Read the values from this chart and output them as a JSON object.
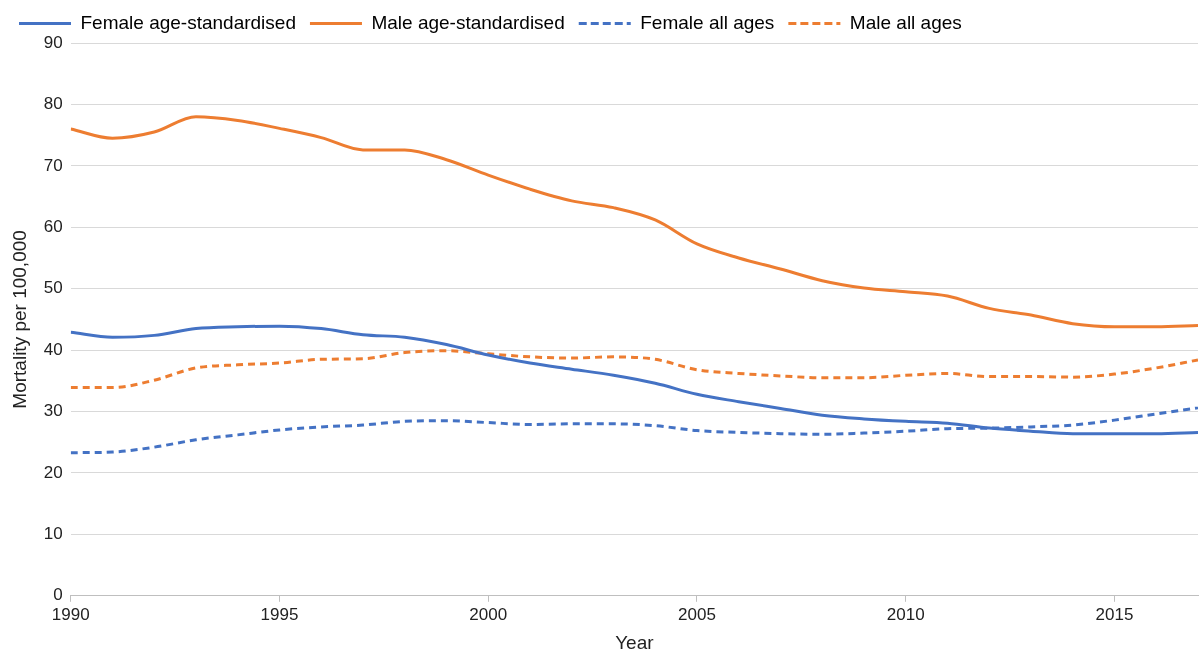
{
  "chart_data": {
    "type": "line",
    "xlabel": "Year",
    "ylabel": "Mortality per 100,000",
    "x": [
      1990,
      1991,
      1992,
      1993,
      1994,
      1995,
      1996,
      1997,
      1998,
      1999,
      2000,
      2001,
      2002,
      2003,
      2004,
      2005,
      2006,
      2007,
      2008,
      2009,
      2010,
      2011,
      2012,
      2013,
      2014,
      2015,
      2016,
      2017
    ],
    "xlim": [
      1990,
      2017
    ],
    "xticks": [
      1990,
      1995,
      2000,
      2005,
      2010,
      2015
    ],
    "ylim": [
      0,
      90
    ],
    "yticks": [
      0,
      10,
      20,
      30,
      40,
      50,
      60,
      70,
      80,
      90
    ],
    "grid": "y",
    "legend": "top",
    "marker": "none",
    "series": [
      {
        "name": "Female age-standardised",
        "color": "#4472c4",
        "line_style": "solid",
        "values": [
          42.9,
          42.1,
          42.4,
          43.5,
          43.8,
          43.9,
          43.5,
          42.5,
          42.1,
          40.9,
          39.2,
          37.9,
          36.9,
          35.9,
          34.6,
          32.8,
          31.6,
          30.5,
          29.4,
          28.8,
          28.4,
          28.1,
          27.3,
          26.8,
          26.4,
          26.4,
          26.4,
          26.6
        ]
      },
      {
        "name": "Male age-standardised",
        "color": "#ed7d31",
        "line_style": "solid",
        "values": [
          76,
          74.5,
          75.5,
          78,
          77.4,
          76.1,
          74.6,
          72.6,
          72.6,
          71,
          68.5,
          66.2,
          64.3,
          63.2,
          61.2,
          57.3,
          55,
          53.2,
          51.3,
          50.1,
          49.5,
          48.8,
          46.8,
          45.7,
          44.3,
          43.8,
          43.8,
          44
        ]
      },
      {
        "name": "Female all ages",
        "color": "#4472c4",
        "line_style": "dashed",
        "values": [
          23.3,
          23.4,
          24.2,
          25.4,
          26.2,
          27,
          27.5,
          27.8,
          28.4,
          28.5,
          28.2,
          27.9,
          28,
          28,
          27.7,
          26.9,
          26.6,
          26.4,
          26.3,
          26.5,
          26.8,
          27.2,
          27.3,
          27.5,
          27.8,
          28.6,
          29.6,
          30.6
        ]
      },
      {
        "name": "Male all ages",
        "color": "#ed7d31",
        "line_style": "dashed",
        "values": [
          33.9,
          33.9,
          35.1,
          37.1,
          37.6,
          37.9,
          38.5,
          38.6,
          39.6,
          39.9,
          39.4,
          38.9,
          38.7,
          38.9,
          38.5,
          36.8,
          36.2,
          35.8,
          35.5,
          35.5,
          35.9,
          36.2,
          35.7,
          35.7,
          35.6,
          36.1,
          37.1,
          38.4
        ]
      }
    ]
  }
}
